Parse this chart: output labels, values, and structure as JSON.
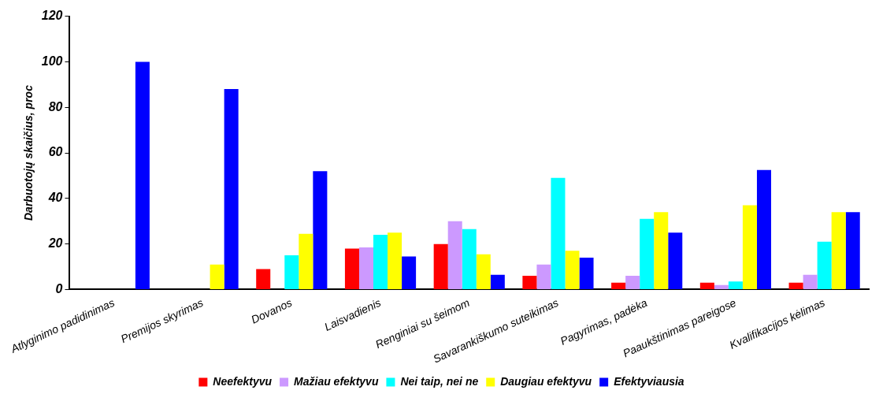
{
  "chart_data": {
    "type": "bar",
    "ylabel": "Darbuotojų skaičius, proc",
    "categories": [
      "Atlyginimo padidinimas",
      "Premijos skyrimas",
      "Dovanos",
      "Laisvadienis",
      "Renginiai su šeimom",
      "Savarankiškumo suteikimas",
      "Pagyrimas, padėka",
      "Paaukštinimas pareigose",
      "Kvalifikacijos kėlimas"
    ],
    "series": [
      {
        "name": "Neefektyvu",
        "color": "#ff0000",
        "values": [
          null,
          null,
          9,
          18,
          20,
          6,
          3,
          3,
          3
        ]
      },
      {
        "name": "Mažiau efektyvu",
        "color": "#cc99ff",
        "values": [
          null,
          null,
          null,
          18.5,
          30,
          11,
          6,
          2,
          6.5
        ]
      },
      {
        "name": "Nei taip, nei ne",
        "color": "#00ffff",
        "values": [
          null,
          null,
          15,
          24,
          26.5,
          49,
          31,
          3.5,
          21
        ]
      },
      {
        "name": "Daugiau efektyvu",
        "color": "#ffff00",
        "values": [
          null,
          11,
          24.5,
          25,
          15.5,
          17,
          34,
          37,
          34
        ]
      },
      {
        "name": "Efektyviausia",
        "color": "#0000ff",
        "values": [
          100,
          88,
          52,
          14.5,
          6.5,
          14,
          25,
          52.5,
          34
        ]
      }
    ],
    "ylim": [
      0,
      120
    ],
    "yticks": [
      0,
      20,
      40,
      60,
      80,
      100,
      120
    ],
    "grid": false,
    "legend": "bottom"
  }
}
